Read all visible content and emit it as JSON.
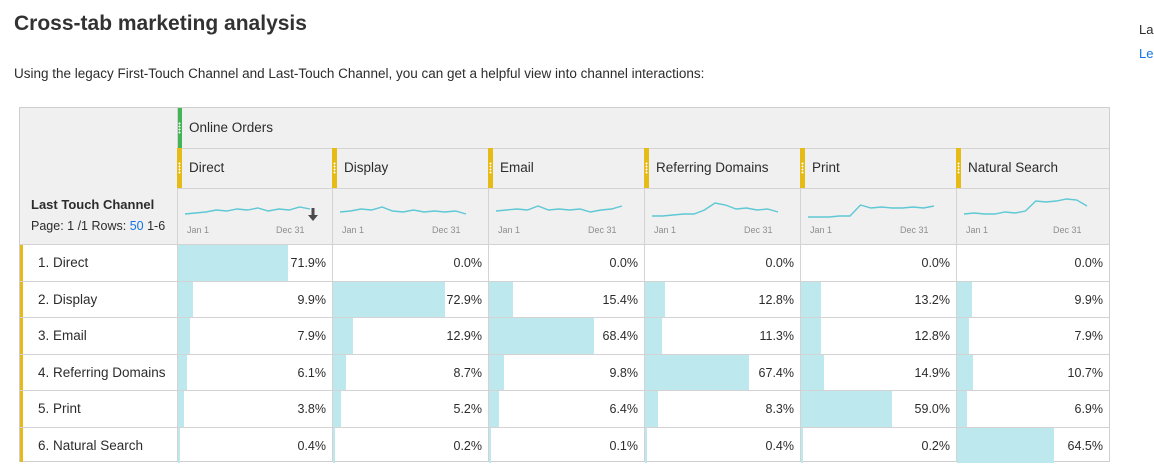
{
  "page": {
    "title": "Cross-tab marketing analysis",
    "intro": "Using the legacy First-Touch Channel and Last-Touch Channel, you can get a helpful view into channel interactions:",
    "side_text_1": "La",
    "side_text_2": "Le"
  },
  "table": {
    "metric_label": "Online Orders",
    "dimension_title": "Last Touch Channel",
    "pagination": {
      "page_label": "Page:",
      "page_value": "1 /1",
      "rows_label": "Rows:",
      "rows_value": "50",
      "range": "1-6"
    },
    "sparkline_start": "Jan 1",
    "sparkline_end": "Dec 31",
    "columns": [
      "Direct",
      "Display",
      "Email",
      "Referring Domains",
      "Print",
      "Natural Search"
    ],
    "rows": [
      {
        "label": "1. Direct",
        "values": [
          "71.9%",
          "0.0%",
          "0.0%",
          "0.0%",
          "0.0%",
          "0.0%"
        ],
        "fractions": [
          0.719,
          0.0,
          0.0,
          0.0,
          0.0,
          0.0
        ]
      },
      {
        "label": "2. Display",
        "values": [
          "9.9%",
          "72.9%",
          "15.4%",
          "12.8%",
          "13.2%",
          "9.9%"
        ],
        "fractions": [
          0.099,
          0.729,
          0.154,
          0.128,
          0.132,
          0.099
        ]
      },
      {
        "label": "3. Email",
        "values": [
          "7.9%",
          "12.9%",
          "68.4%",
          "11.3%",
          "12.8%",
          "7.9%"
        ],
        "fractions": [
          0.079,
          0.129,
          0.684,
          0.113,
          0.128,
          0.079
        ]
      },
      {
        "label": "4. Referring Domains",
        "values": [
          "6.1%",
          "8.7%",
          "9.8%",
          "67.4%",
          "14.9%",
          "10.7%"
        ],
        "fractions": [
          0.061,
          0.087,
          0.098,
          0.674,
          0.149,
          0.107
        ]
      },
      {
        "label": "5. Print",
        "values": [
          "3.8%",
          "5.2%",
          "6.4%",
          "8.3%",
          "59.0%",
          "6.9%"
        ],
        "fractions": [
          0.038,
          0.052,
          0.064,
          0.083,
          0.59,
          0.069
        ]
      },
      {
        "label": "6. Natural Search",
        "values": [
          "0.4%",
          "0.2%",
          "0.1%",
          "0.4%",
          "0.2%",
          "64.5%"
        ],
        "fractions": [
          0.004,
          0.002,
          0.001,
          0.004,
          0.002,
          0.645
        ]
      }
    ]
  },
  "colors": {
    "metric_accent": "#44b556",
    "dimension_accent": "#e6bb18",
    "bar_fill": "#bde9ee",
    "sparkline": "#5ec8d4",
    "link": "#1473e6"
  },
  "icons": {
    "sort": "arrow-down-icon"
  }
}
